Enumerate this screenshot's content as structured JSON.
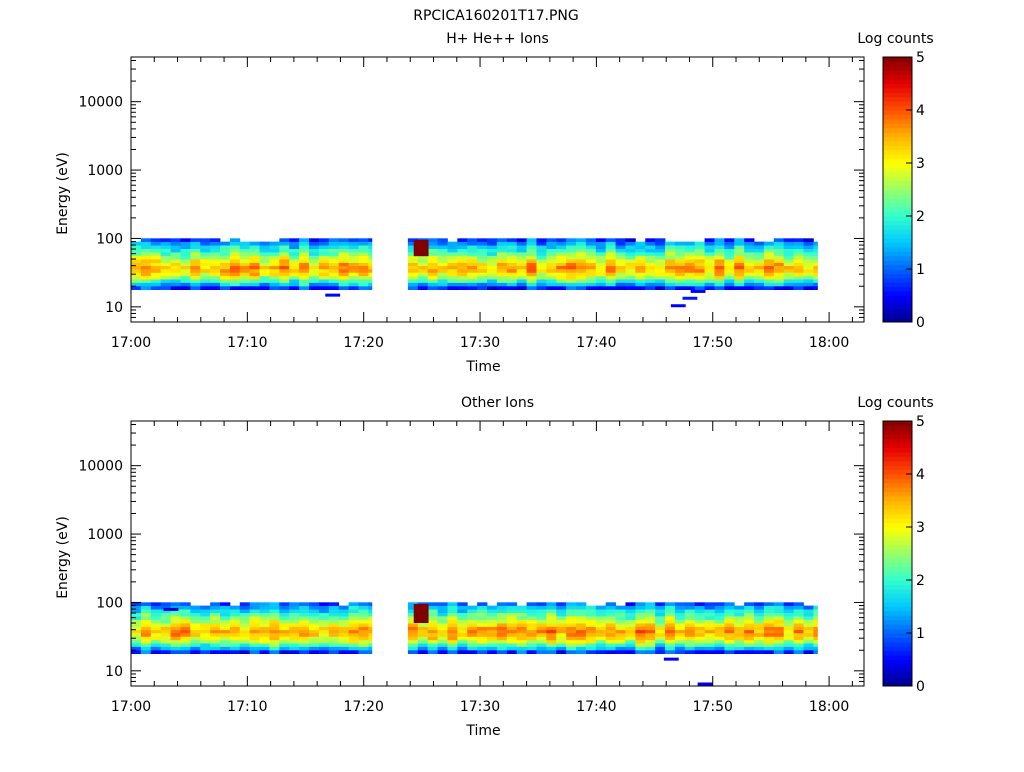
{
  "figure_title": "RPCICA160201T17.PNG",
  "colors": {
    "colormap": [
      "#00008c",
      "#0000ff",
      "#0064ff",
      "#00c8ff",
      "#32ffcd",
      "#96ff69",
      "#ffff00",
      "#ffb400",
      "#ff5000",
      "#e60000",
      "#800000"
    ],
    "gap_fill": "#ffffff"
  },
  "chart_data": [
    {
      "type": "heatmap",
      "title": "H+ He++ Ions",
      "xlabel": "Time",
      "ylabel": "Energy (eV)",
      "yscale": "log",
      "x_ticks": [
        "17:00",
        "17:10",
        "17:20",
        "17:30",
        "17:40",
        "17:50",
        "18:00"
      ],
      "xlim_minutes": [
        0,
        63
      ],
      "y_ticks": [
        10,
        100,
        1000,
        10000
      ],
      "y_tick_labels": [
        "10",
        "100",
        "1000",
        "10000"
      ],
      "ylim": [
        6,
        45000
      ],
      "colorbar": {
        "label": "Log counts",
        "range": [
          0,
          5
        ],
        "ticks": [
          "0",
          "1",
          "2",
          "3",
          "4",
          "5"
        ]
      },
      "time_step_minutes": 0.85,
      "data_intervals_minutes": [
        [
          0,
          20.7
        ],
        [
          23.8,
          59.0
        ]
      ],
      "energy_bins_eV": [
        19,
        21.5,
        24,
        27,
        30,
        34,
        38,
        42,
        47,
        53,
        60,
        67,
        75,
        85,
        95
      ],
      "spectrum_log_counts": [
        0.8,
        1.5,
        2.1,
        2.7,
        3.1,
        3.4,
        3.5,
        3.3,
        3.0,
        2.6,
        2.3,
        2.0,
        1.7,
        1.3,
        0.9
      ],
      "saturated_block": {
        "time_minutes": 24.3,
        "energy_range_eV": [
          55,
          95
        ],
        "log_counts": 5
      },
      "sparse_points": [
        {
          "time_minutes": 16.7,
          "energy_eV": 15,
          "log_counts": 0.5
        },
        {
          "time_minutes": 46.4,
          "energy_eV": 10.5,
          "log_counts": 0.5
        },
        {
          "time_minutes": 47.4,
          "energy_eV": 13.5,
          "log_counts": 0.6
        },
        {
          "time_minutes": 48.1,
          "energy_eV": 17,
          "log_counts": 0.5
        }
      ]
    },
    {
      "type": "heatmap",
      "title": "Other Ions",
      "xlabel": "Time",
      "ylabel": "Energy (eV)",
      "yscale": "log",
      "x_ticks": [
        "17:00",
        "17:10",
        "17:20",
        "17:30",
        "17:40",
        "17:50",
        "18:00"
      ],
      "xlim_minutes": [
        0,
        63
      ],
      "y_ticks": [
        10,
        100,
        1000,
        10000
      ],
      "y_tick_labels": [
        "10",
        "100",
        "1000",
        "10000"
      ],
      "ylim": [
        6,
        45000
      ],
      "colorbar": {
        "label": "Log counts",
        "range": [
          0,
          5
        ],
        "ticks": [
          "0",
          "1",
          "2",
          "3",
          "4",
          "5"
        ]
      },
      "time_step_minutes": 0.85,
      "data_intervals_minutes": [
        [
          0,
          20.7
        ],
        [
          23.8,
          59.0
        ]
      ],
      "energy_bins_eV": [
        19,
        21.5,
        24,
        27,
        30,
        34,
        38,
        42,
        47,
        53,
        60,
        67,
        75,
        85,
        95
      ],
      "spectrum_log_counts": [
        0.8,
        1.5,
        2.1,
        2.7,
        3.1,
        3.4,
        3.6,
        3.4,
        3.1,
        2.7,
        2.4,
        2.1,
        1.8,
        1.4,
        1.0
      ],
      "saturated_block": {
        "time_minutes": 24.3,
        "energy_range_eV": [
          50,
          95
        ],
        "log_counts": 5
      },
      "sparse_points": [
        {
          "time_minutes": 2.8,
          "energy_eV": 80,
          "log_counts": 0.3
        },
        {
          "time_minutes": 45.8,
          "energy_eV": 15,
          "log_counts": 0.5
        },
        {
          "time_minutes": 48.7,
          "energy_eV": 6.5,
          "log_counts": 0.4
        }
      ]
    }
  ]
}
